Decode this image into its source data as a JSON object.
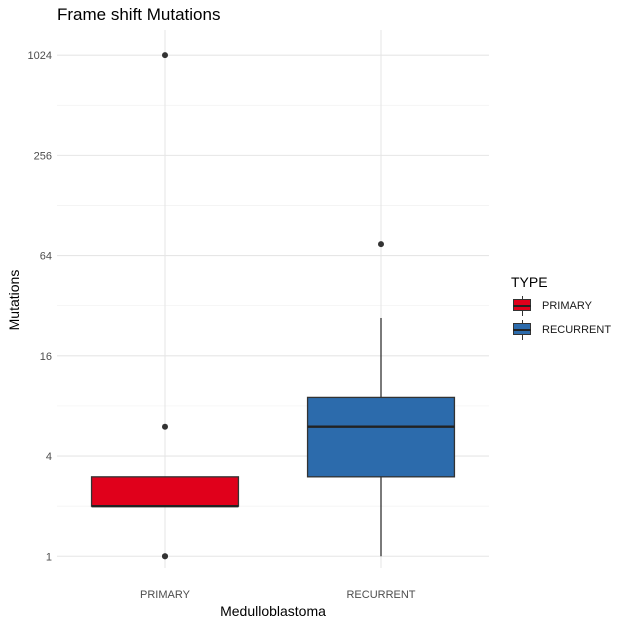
{
  "chart_data": {
    "type": "box",
    "title": "Frame shift Mutations",
    "xlabel": "Medulloblastoma",
    "ylabel": "Mutations",
    "y_scale": "log2",
    "ylim": [
      0.85,
      1450
    ],
    "yticks": [
      1,
      4,
      16,
      64,
      256,
      1024
    ],
    "grid": true,
    "legend_title": "TYPE",
    "legend_position": "right",
    "categories": [
      "PRIMARY",
      "RECURRENT"
    ],
    "series": [
      {
        "name": "PRIMARY",
        "color": "#E0001B",
        "box": {
          "lower_whisker": 2,
          "q1": 2,
          "median": 2,
          "q3": 3,
          "upper_whisker": 3
        },
        "outliers": [
          1,
          1,
          6,
          1024
        ]
      },
      {
        "name": "RECURRENT",
        "color": "#2C6BAC",
        "box": {
          "lower_whisker": 1,
          "q1": 3,
          "median": 6,
          "q3": 9,
          "upper_whisker": 27
        },
        "outliers": [
          75
        ]
      }
    ]
  }
}
